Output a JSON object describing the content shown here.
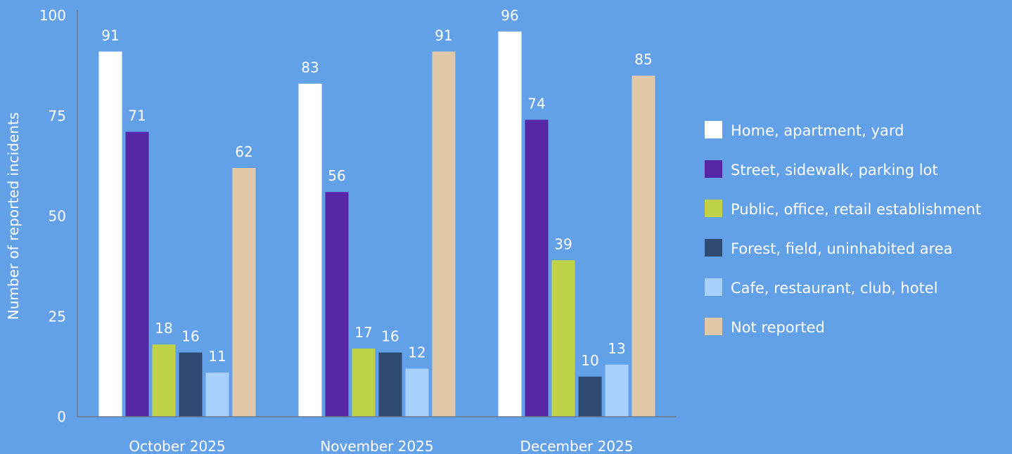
{
  "chart_data": {
    "type": "bar",
    "ylabel": "Number of reported incidents",
    "xlabel": "",
    "ylim": [
      0,
      100
    ],
    "yticks": [
      0,
      25,
      50,
      75,
      100
    ],
    "categories": [
      "October 2025",
      "November 2025",
      "December 2025"
    ],
    "legend_position": "right",
    "grid": false,
    "series": [
      {
        "name": "Home, apartment, yard",
        "color": "#ffffff",
        "values": [
          91,
          83,
          96
        ]
      },
      {
        "name": "Street, sidewalk, parking lot",
        "color": "#5727a8",
        "values": [
          71,
          56,
          74
        ]
      },
      {
        "name": "Public, office, retail establishment",
        "color": "#bfd24a",
        "values": [
          18,
          17,
          39
        ]
      },
      {
        "name": "Forest, field, uninhabited area",
        "color": "#2e4a70",
        "values": [
          16,
          16,
          10
        ]
      },
      {
        "name": "Cafe, restaurant, club, hotel",
        "color": "#a8d0fc",
        "values": [
          11,
          12,
          13
        ]
      },
      {
        "name": "Not reported",
        "color": "#e0c8a8",
        "values": [
          62,
          91,
          85
        ]
      }
    ]
  }
}
